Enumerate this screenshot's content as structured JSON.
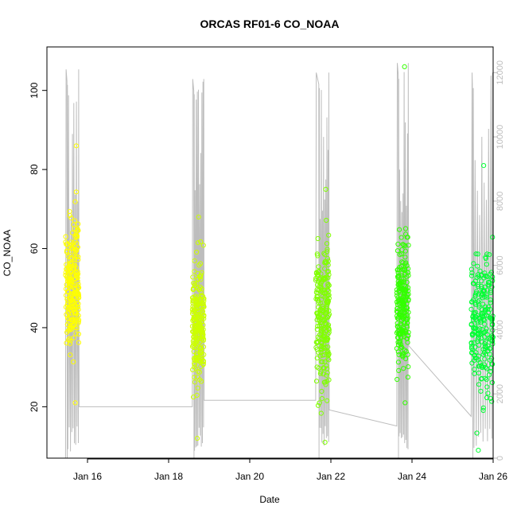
{
  "chart_data": {
    "type": "scatter",
    "title": "ORCAS RF01-6 CO_NOAA",
    "xlabel": "Date",
    "ylabel": "CO_NOAA",
    "xlim": [
      "2016-01-15T00:00",
      "2016-01-26T00:00"
    ],
    "x_ticks": [
      "Jan 16",
      "Jan 18",
      "Jan 20",
      "Jan 22",
      "Jan 24",
      "Jan 26"
    ],
    "x_tick_dates": [
      "2016-01-16",
      "2016-01-18",
      "2016-01-20",
      "2016-01-22",
      "2016-01-24",
      "2016-01-26"
    ],
    "ylim": [
      7,
      111
    ],
    "y_ticks": [
      20,
      40,
      60,
      80,
      100
    ],
    "y2": {
      "label": "",
      "lim": [
        0,
        12800
      ],
      "ticks": [
        0,
        2000,
        4000,
        6000,
        8000,
        10000,
        12000
      ],
      "color": "#bdbdbd"
    },
    "grid": false,
    "marker": "open-circle",
    "series": [
      {
        "date": "2016-01-15",
        "color": "#ffff00",
        "x_range": [
          "2016-01-15T11:00",
          "2016-01-15T19:00"
        ],
        "co_typical_range": [
          25,
          77
        ],
        "co_max": 86,
        "co_min": 21
      },
      {
        "date": "2016-01-18",
        "color": "#ccff00",
        "x_range": [
          "2016-01-18T14:00",
          "2016-01-18T21:00"
        ],
        "co_typical_range": [
          17,
          65
        ],
        "co_max": 68,
        "co_min": 12
      },
      {
        "date": "2016-01-21",
        "color": "#80ff00",
        "x_range": [
          "2016-01-21T15:00",
          "2016-01-21T23:00"
        ],
        "co_typical_range": [
          14,
          72
        ],
        "co_max": 75,
        "co_min": 11
      },
      {
        "date": "2016-01-23",
        "color": "#33ff00",
        "x_range": [
          "2016-01-23T15:00",
          "2016-01-23T22:00"
        ],
        "co_typical_range": [
          22,
          69
        ],
        "co_max": 106,
        "co_min": 21
      },
      {
        "date": "2016-01-25",
        "color": "#00ff33",
        "x_range": [
          "2016-01-25T11:00",
          "2016-01-25T24:00"
        ],
        "co_typical_range": [
          12,
          70
        ],
        "co_max": 81,
        "co_min": 9
      }
    ],
    "altitude_trace": {
      "axis": "y2",
      "color": "#bdbdbd",
      "flights": [
        {
          "start": "2016-01-15T11:00",
          "end": "2016-01-15T19:00",
          "takeoff_alt": 0,
          "peak_alt": 12100,
          "landing_alt": 1600,
          "turn_time": "2016-01-15T12:00"
        },
        {
          "start": "2016-01-18T14:00",
          "end": "2016-01-18T21:00",
          "takeoff_alt": 1600,
          "peak_alt": 11800,
          "landing_alt": 1800,
          "turn_time": "2016-01-18T15:00"
        },
        {
          "start": "2016-01-21T15:00",
          "end": "2016-01-21T23:00",
          "takeoff_alt": 1800,
          "peak_alt": 12000,
          "landing_alt": 1500,
          "turn_time": "2016-01-21T17:00"
        },
        {
          "start": "2016-01-23T15:00",
          "end": "2016-01-23T22:00",
          "takeoff_alt": 1000,
          "peak_alt": 12300,
          "landing_alt": 3500,
          "turn_time": "2016-01-23T16:00"
        },
        {
          "start": "2016-01-25T11:00",
          "end": "2016-01-25T24:00",
          "takeoff_alt": 1300,
          "peak_alt": 12000,
          "landing_alt": 1400,
          "turn_time": "2016-01-25T12:00"
        }
      ]
    }
  }
}
